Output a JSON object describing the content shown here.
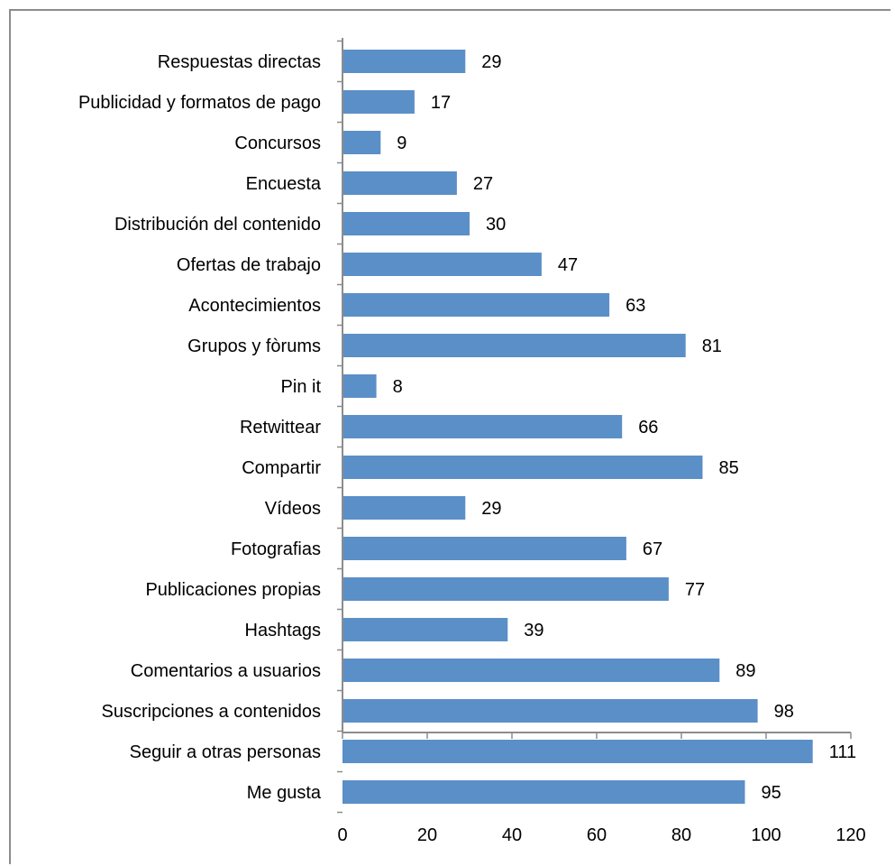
{
  "chart_data": {
    "type": "bar",
    "orientation": "horizontal",
    "title": "",
    "xlabel": "",
    "ylabel": "",
    "categories": [
      "Respuestas directas",
      "Publicidad y formatos de pago",
      "Concursos",
      "Encuesta",
      "Distribución del contenido",
      "Ofertas de trabajo",
      "Acontecimientos",
      "Grupos y fòrums",
      "Pin it",
      "Retwittear",
      "Compartir",
      "Vídeos",
      "Fotografias",
      "Publicaciones propias",
      "Hashtags",
      "Comentarios a usuarios",
      "Suscripciones a contenidos",
      "Seguir a otras personas",
      "Me gusta"
    ],
    "values": [
      29,
      17,
      9,
      27,
      30,
      47,
      63,
      81,
      8,
      66,
      85,
      29,
      67,
      77,
      39,
      89,
      98,
      111,
      95
    ],
    "xlim": [
      0,
      120
    ],
    "xticks": [
      0,
      20,
      40,
      60,
      80,
      100,
      120
    ],
    "grid": false,
    "legend": "none",
    "data_labels": true,
    "bar_color": "#5b8fc7",
    "axis_color": "#8c8c8c"
  }
}
